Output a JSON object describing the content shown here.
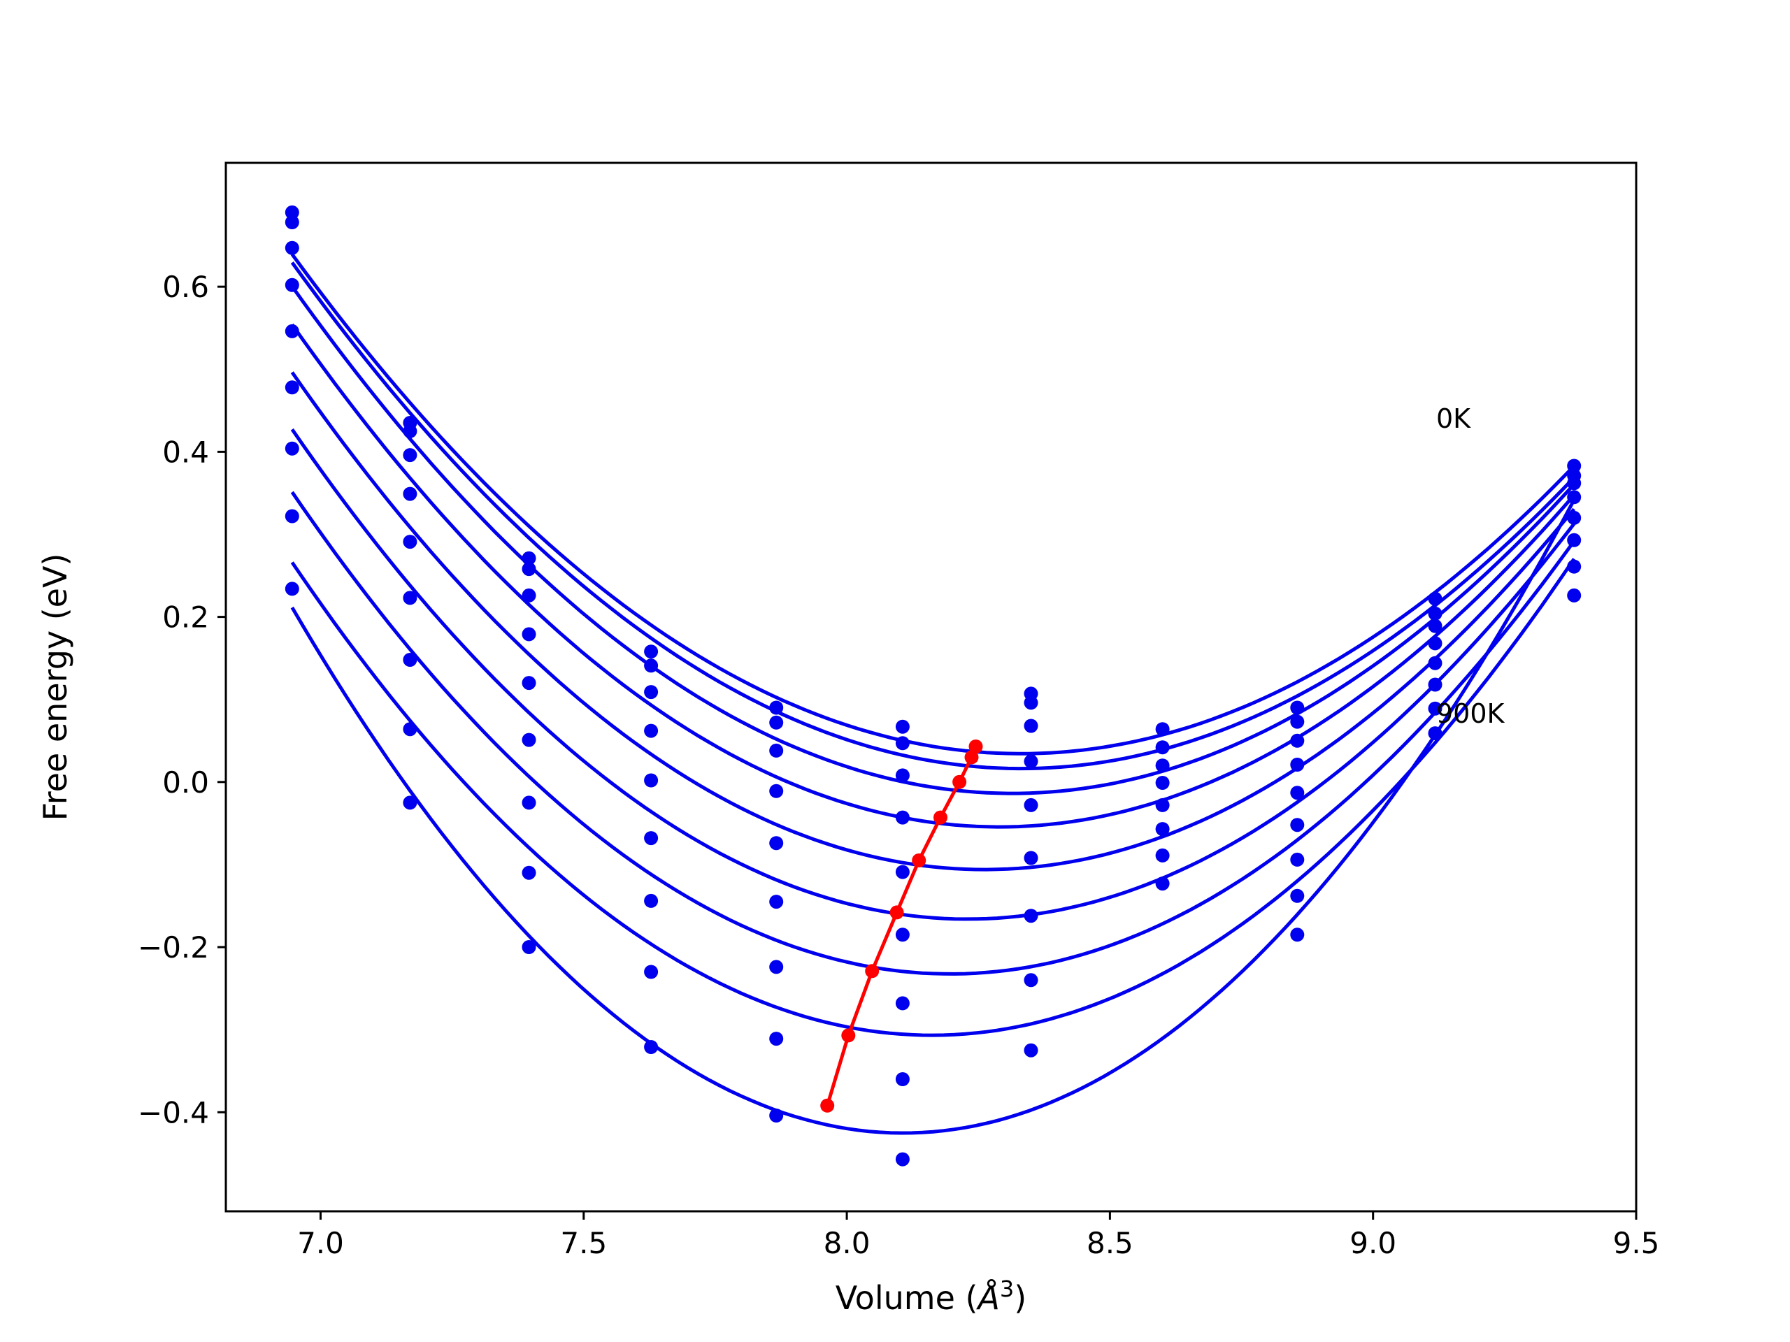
{
  "chart_data": {
    "type": "scatter",
    "title": "",
    "xlabel": "Volume (Å³)",
    "xlabel_parts": {
      "prefix": "Volume (",
      "symbol": "Å",
      "exponent": "3",
      "suffix": ")"
    },
    "ylabel": "Free energy (eV)",
    "xlim": [
      6.82,
      9.5
    ],
    "ylim": [
      -0.52,
      0.75
    ],
    "x_ticks": [
      7.0,
      7.5,
      8.0,
      8.5,
      9.0,
      9.5
    ],
    "x_tick_labels": [
      "7.0",
      "7.5",
      "8.0",
      "8.5",
      "9.0",
      "9.5"
    ],
    "y_ticks": [
      -0.4,
      -0.2,
      0.0,
      0.2,
      0.4,
      0.6
    ],
    "y_tick_labels": [
      "−0.4",
      "−0.2",
      "0.0",
      "0.2",
      "0.4",
      "0.6"
    ],
    "grid": false,
    "legend": "none",
    "annotations": [
      {
        "text": "0K",
        "x": 9.12,
        "y": 0.44
      },
      {
        "text": "900K",
        "x": 9.12,
        "y": 0.083
      }
    ],
    "colors": {
      "curves": "#0000ee",
      "minimum_line": "#ff0000",
      "points": "#0000ee"
    },
    "x_points": [
      6.946,
      7.17,
      7.396,
      7.628,
      7.866,
      8.106,
      8.35,
      8.6,
      8.856,
      9.118,
      9.382
    ],
    "series": [
      {
        "values": [
          0.69,
          0.435,
          0.271,
          0.158,
          0.09,
          0.067,
          0.107,
          0.064,
          0.09,
          0.222,
          0.383
        ]
      },
      {
        "values": [
          0.678,
          0.425,
          0.258,
          0.141,
          0.072,
          0.047,
          0.096,
          0.042,
          0.073,
          0.204,
          0.371
        ]
      },
      {
        "values": [
          0.647,
          0.396,
          0.226,
          0.109,
          0.038,
          0.008,
          0.068,
          0.02,
          0.05,
          0.189,
          0.362
        ]
      },
      {
        "values": [
          0.602,
          0.349,
          0.179,
          0.062,
          -0.011,
          -0.043,
          0.025,
          -0.001,
          0.021,
          0.168,
          0.345
        ]
      },
      {
        "values": [
          0.546,
          0.291,
          0.12,
          0.002,
          -0.074,
          -0.109,
          -0.028,
          -0.028,
          -0.013,
          0.144,
          0.32
        ]
      },
      {
        "values": [
          0.478,
          0.223,
          0.051,
          -0.068,
          -0.145,
          -0.185,
          -0.092,
          -0.057,
          -0.052,
          0.118,
          0.293
        ]
      },
      {
        "values": [
          0.404,
          0.148,
          -0.025,
          -0.144,
          -0.224,
          -0.268,
          -0.162,
          -0.089,
          -0.094,
          0.089,
          0.261
        ]
      },
      {
        "values": [
          0.322,
          0.064,
          -0.11,
          -0.23,
          -0.311,
          -0.36,
          -0.24,
          -0.123,
          -0.138,
          0.059,
          0.226
        ]
      },
      {
        "values": [
          0.234,
          -0.025,
          -0.2,
          -0.321,
          -0.404,
          -0.457,
          -0.325,
          null,
          -0.185,
          null,
          null
        ]
      }
    ],
    "minimum_line": {
      "x": [
        8.245,
        8.237,
        8.214,
        8.178,
        8.137,
        8.095,
        8.048,
        8.003,
        7.963
      ],
      "y": [
        0.043,
        0.03,
        0.0,
        -0.043,
        -0.095,
        -0.158,
        -0.229,
        -0.307,
        -0.392
      ]
    }
  }
}
